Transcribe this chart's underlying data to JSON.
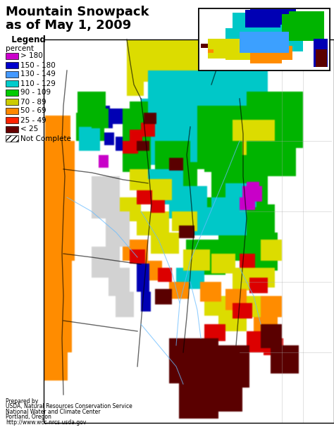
{
  "title_line1": "Mountain Snowpack",
  "title_line2": "as of May 1, 2009",
  "legend_title": "  Legend",
  "legend_subtitle": "percent",
  "legend_colors": [
    "#CC00CC",
    "#0000CC",
    "#4499FF",
    "#00CCCC",
    "#00CC00",
    "#CCCC00",
    "#FF8800",
    "#FF2200",
    "#660000"
  ],
  "legend_labels": [
    "> 180",
    "150 - 180",
    "130 - 149",
    "110 - 129",
    "90 - 109",
    "70 - 89",
    "50 - 69",
    "25 - 49",
    "< 25"
  ],
  "not_complete_label": "Not Complete",
  "credit_lines": [
    "Prepared by",
    "USDA, Natural Resources Conservation Service",
    "National Water and Climate Center",
    "Portland, Oregon",
    "http://www.wcc.nrcs.usda.gov"
  ],
  "bg_color": "#FFFFFF",
  "title_fontsize": 13,
  "legend_fontsize": 7.5,
  "credit_fontsize": 5.5,
  "fig_width": 4.74,
  "fig_height": 6.13,
  "dpi": 100
}
